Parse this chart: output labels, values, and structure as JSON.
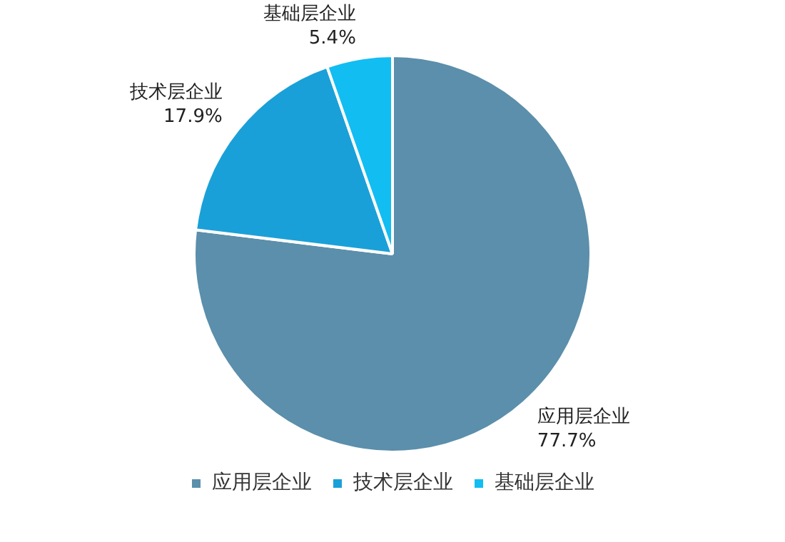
{
  "chart_data": {
    "type": "pie",
    "categories": [
      "应用层企业",
      "技术层企业",
      "基础层企业"
    ],
    "values": [
      77.7,
      17.9,
      5.4
    ],
    "value_labels": [
      "77.7%",
      "17.9%",
      "5.4%"
    ],
    "colors": [
      "#5b8fab",
      "#1aa0d8",
      "#12bdf2"
    ],
    "legend": "bottom"
  }
}
